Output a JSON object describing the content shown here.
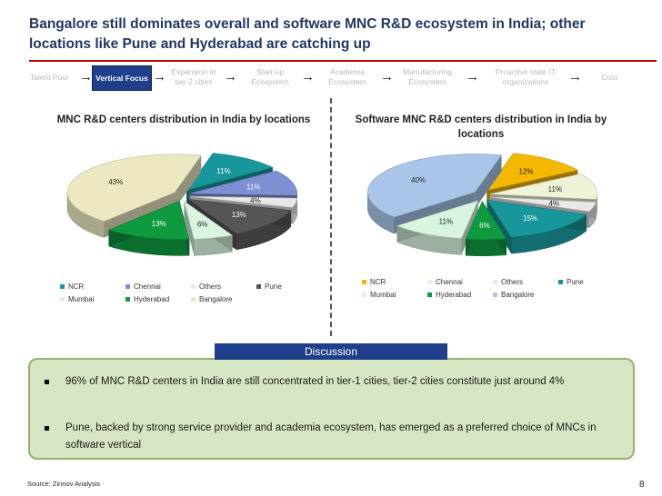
{
  "title": "Bangalore still dominates overall and software MNC R&D ecosystem in India; other locations like Pune and Hyderabad are catching up",
  "flow": {
    "steps": [
      "Talent Pool",
      "Vertical Focus",
      "Expansion to tier-2 cities",
      "Start-up Ecosystem",
      "Academia Ecosystem",
      "Manufacturing Ecosystem",
      "Proactive state IT organizations",
      "Cost"
    ],
    "active_index": 1
  },
  "colors": {
    "NCR": "#f5b800",
    "Chennai": "#7f8fd4",
    "Others": "#e0e0e0",
    "Pune": "#17979b",
    "Pune_alt": "#555555",
    "Mumbai": "#d8f5e0",
    "Hyderabad": "#0f9a40",
    "Bangalore": "#ece9c2",
    "Bangalore_alt": "#a9c6ea",
    "accent": "#1f3f8b",
    "rule": "#c00000"
  },
  "chart_data": [
    {
      "type": "pie",
      "title": "MNC R&D centers distribution in India by locations",
      "legend_position": "bottom",
      "slices": [
        {
          "label": "NCR",
          "value": 11,
          "display": "11%",
          "color": "#17979b"
        },
        {
          "label": "Chennai",
          "value": 11,
          "display": "11%",
          "color": "#7f8fd4"
        },
        {
          "label": "Others",
          "value": 4,
          "display": "4%",
          "color": "#e8e8e8"
        },
        {
          "label": "Pune",
          "value": 13,
          "display": "13%",
          "color": "#555555"
        },
        {
          "label": "Mumbai",
          "value": 6,
          "display": "6%",
          "color": "#d8f5e0"
        },
        {
          "label": "Hyderabad",
          "value": 13,
          "display": "13%",
          "color": "#0f9a40"
        },
        {
          "label": "Bangalore",
          "value": 43,
          "display": "43%",
          "color": "#ece9c2"
        }
      ],
      "legend": [
        "NCR",
        "Chennai",
        "Others",
        "Pune",
        "Mumbai",
        "Hyderabad",
        "Bangalore"
      ],
      "legend_colors": [
        "#17979b",
        "#7f8fd4",
        "#e8e8e8",
        "#555555",
        "#d8f5e0",
        "#0f9a40",
        "#ece9c2"
      ]
    },
    {
      "type": "pie",
      "title": "Software MNC R&D centers distribution in India by locations",
      "legend_position": "bottom",
      "slices": [
        {
          "label": "NCR",
          "value": 12,
          "display": "12%",
          "color": "#f5b800"
        },
        {
          "label": "Chennai",
          "value": 11,
          "display": "11%",
          "color": "#f0f4d6"
        },
        {
          "label": "Others",
          "value": 4,
          "display": "4%",
          "color": "#e8e8e8"
        },
        {
          "label": "Pune",
          "value": 15,
          "display": "15%",
          "color": "#17979b"
        },
        {
          "label": "Hyderabad",
          "value": 6,
          "display": "6%",
          "color": "#0f9a40"
        },
        {
          "label": "Mumbai",
          "value": 11,
          "display": "11%",
          "color": "#d8f5e0"
        },
        {
          "label": "Bangalore",
          "value": 40,
          "display": "40%",
          "color": "#a9c6ea"
        }
      ],
      "legend": [
        "NCR",
        "Chennai",
        "Others",
        "Pune",
        "Mumbai",
        "Hyderabad",
        "Bangalore"
      ],
      "legend_colors": [
        "#f5b800",
        "#f0f4d6",
        "#e8e8e8",
        "#17979b",
        "#d8f5e0",
        "#0f9a40",
        "#a9c6ea"
      ]
    }
  ],
  "discussion": {
    "header": "Discussion",
    "bullets": [
      "96% of MNC R&D centers in India are still concentrated in tier-1 cities, tier-2 cities constitute just around 4%",
      "Pune, backed by strong service provider and academia ecosystem, has emerged as a preferred choice of MNCs in software vertical"
    ]
  },
  "source": "Source: Zinnov Analysis",
  "page_number": "8"
}
